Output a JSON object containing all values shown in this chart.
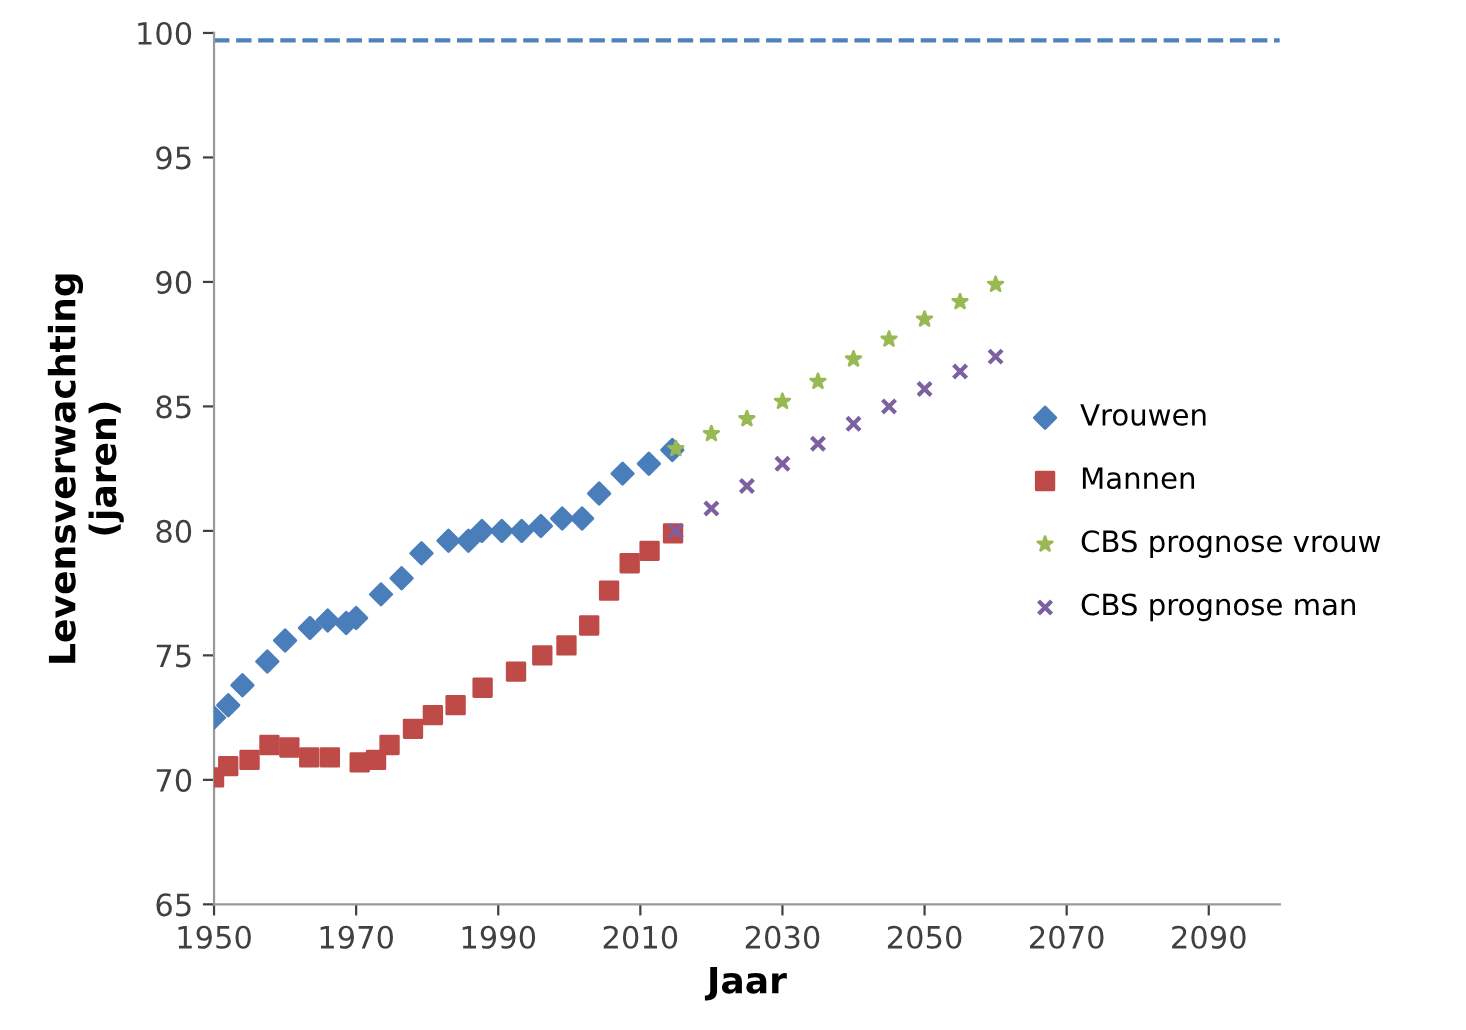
{
  "chart_data": {
    "type": "scatter",
    "xlabel": "Jaar",
    "ylabel": "Levensverwachting\n(jaren)",
    "xlim": [
      1950,
      2100
    ],
    "xticks": [
      1950,
      1970,
      1990,
      2010,
      2030,
      2050,
      2070,
      2090
    ],
    "ylim": [
      65,
      100
    ],
    "yticks": [
      65,
      70,
      75,
      80,
      85,
      90,
      95,
      100
    ],
    "grid": false,
    "legend": "right",
    "ref_lines": [
      {
        "axis": "y",
        "value": 99.7,
        "color": "#4f81bd",
        "line_style": "dashed"
      }
    ],
    "series": [
      {
        "name": "Vrouwen",
        "color": "#4a7ebb",
        "marker": "diamond",
        "x": [
          1950,
          1952,
          1954,
          1957.5,
          1960,
          1963.5,
          1966,
          1968.6,
          1970,
          1973.5,
          1976.4,
          1979.2,
          1983,
          1985.8,
          1987.7,
          1990.5,
          1993.3,
          1996,
          1999,
          2001.8,
          2004.2,
          2007.5,
          2011.2,
          2014.5
        ],
        "values": [
          72.5,
          73.0,
          73.8,
          74.75,
          75.6,
          76.1,
          76.4,
          76.3,
          76.5,
          77.45,
          78.1,
          79.1,
          79.6,
          79.6,
          80.0,
          80.0,
          80.0,
          80.2,
          80.5,
          80.5,
          81.5,
          82.3,
          82.7,
          83.25
        ]
      },
      {
        "name": "Mannen",
        "color": "#be4b48",
        "marker": "square",
        "x": [
          1950,
          1952,
          1955,
          1957.8,
          1960.6,
          1963.4,
          1966.3,
          1970.5,
          1972.8,
          1974.7,
          1978,
          1980.8,
          1984,
          1987.8,
          1992.5,
          1996.2,
          1999.6,
          2002.8,
          2005.6,
          2008.5,
          2011.3,
          2014.6
        ],
        "values": [
          70.1,
          70.55,
          70.8,
          71.4,
          71.3,
          70.9,
          70.9,
          70.7,
          70.8,
          71.4,
          72.05,
          72.6,
          73.0,
          73.7,
          74.35,
          75.0,
          75.4,
          76.2,
          77.6,
          78.7,
          79.2,
          79.9
        ]
      },
      {
        "name": "CBS prognose vrouw",
        "color": "#98b954",
        "marker": "star",
        "x": [
          2015,
          2020,
          2025,
          2030,
          2035,
          2040,
          2045,
          2050,
          2055,
          2060
        ],
        "values": [
          83.3,
          83.9,
          84.5,
          85.2,
          86.0,
          86.9,
          87.7,
          88.5,
          89.2,
          89.9
        ]
      },
      {
        "name": "CBS prognose man",
        "color": "#7d60a0",
        "marker": "cross",
        "x": [
          2015,
          2020,
          2025,
          2030,
          2035,
          2040,
          2045,
          2050,
          2055,
          2060
        ],
        "values": [
          80.0,
          80.9,
          81.8,
          82.7,
          83.5,
          84.3,
          85.0,
          85.7,
          86.4,
          87.0
        ]
      }
    ]
  }
}
